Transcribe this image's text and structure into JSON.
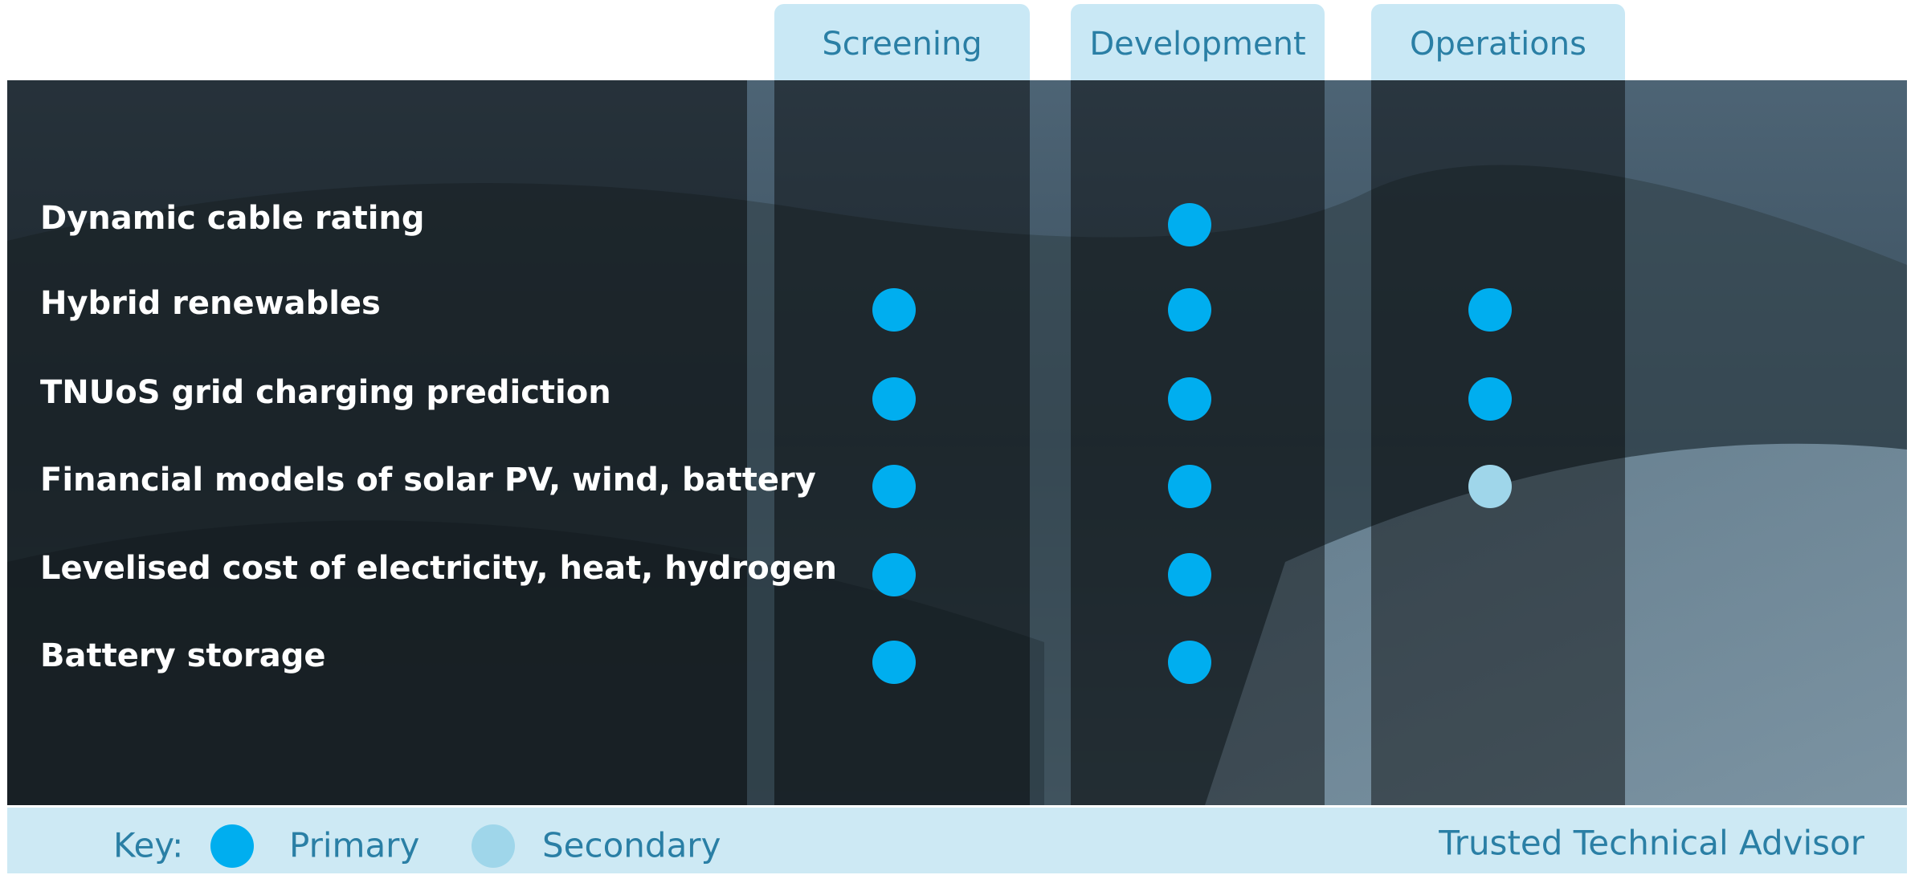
{
  "columns": [
    "Screening",
    "Development",
    "Operations"
  ],
  "rows": [
    {
      "label": "Dynamic cable rating",
      "marks": [
        null,
        "Primary",
        null
      ]
    },
    {
      "label": "Hybrid renewables",
      "marks": [
        "Primary",
        "Primary",
        "Primary"
      ]
    },
    {
      "label": "TNUoS grid charging prediction",
      "marks": [
        "Primary",
        "Primary",
        "Primary"
      ]
    },
    {
      "label": "Financial models of solar PV, wind, battery",
      "marks": [
        "Primary",
        "Primary",
        "Secondary"
      ]
    },
    {
      "label": "Levelised cost of electricity, heat, hydrogen",
      "marks": [
        "Primary",
        "Primary",
        null
      ]
    },
    {
      "label": "Battery storage",
      "marks": [
        "Primary",
        "Primary",
        null
      ]
    }
  ],
  "key": {
    "title": "Key:",
    "items": [
      {
        "label": "Primary",
        "color": "#00aeef"
      },
      {
        "label": "Secondary",
        "color": "#9fd6ea"
      }
    ]
  },
  "footer": "Trusted Technical Advisor"
}
